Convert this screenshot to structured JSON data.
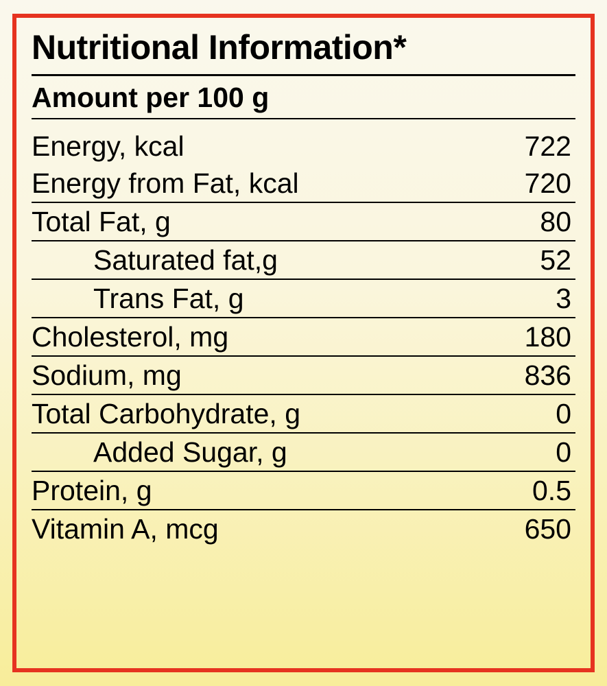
{
  "title": "Nutritional Information*",
  "subtitle": "Amount per 100 g",
  "rows": {
    "energy": {
      "label": "Energy, kcal",
      "value": "722"
    },
    "energy_fat": {
      "label": "Energy from Fat, kcal",
      "value": "720"
    },
    "total_fat": {
      "label": "Total Fat, g",
      "value": "80"
    },
    "sat_fat": {
      "label": "Saturated fat,g",
      "value": "52"
    },
    "trans_fat": {
      "label": "Trans Fat, g",
      "value": "3"
    },
    "cholesterol": {
      "label": "Cholesterol, mg",
      "value": "180"
    },
    "sodium": {
      "label": "Sodium, mg",
      "value": "836"
    },
    "total_carb": {
      "label": "Total Carbohydrate, g",
      "value": "0"
    },
    "added_sugar": {
      "label": "Added Sugar, g",
      "value": "0"
    },
    "protein": {
      "label": "Protein, g",
      "value": "0.5"
    },
    "vitamin_a": {
      "label": "Vitamin A, mcg",
      "value": "650"
    }
  },
  "colors": {
    "border": "#e63320",
    "text": "#000000",
    "bg_top": "#faf8ed",
    "bg_bot": "#f8ed9a"
  },
  "font": {
    "title_size_pt": 50,
    "row_size_pt": 41,
    "weight_bold": 700,
    "weight_normal": 400
  }
}
